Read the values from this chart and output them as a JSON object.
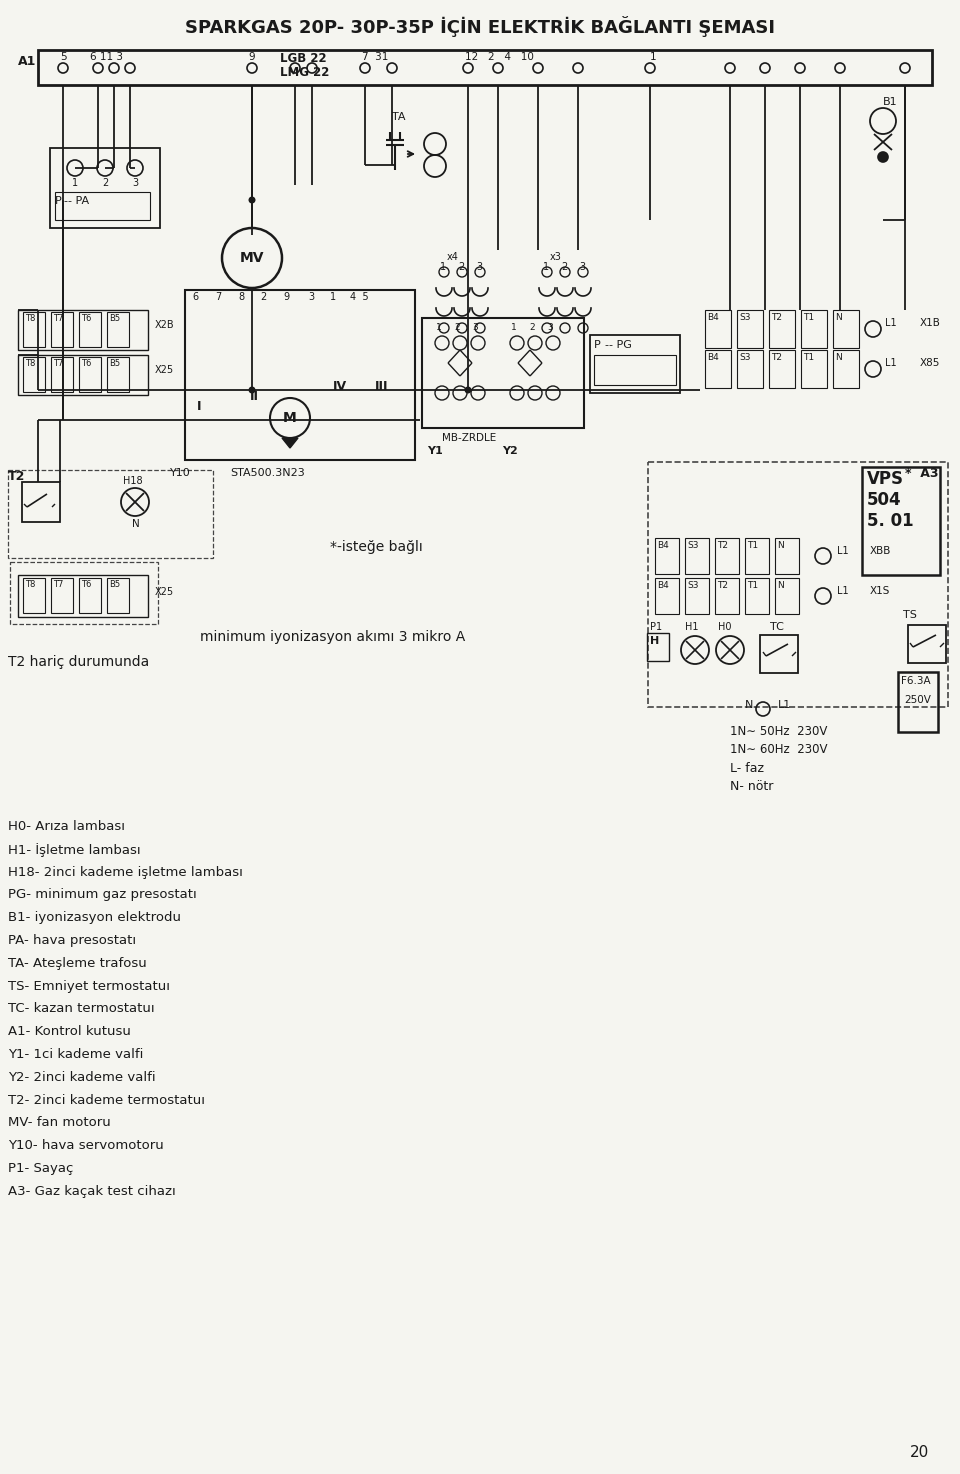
{
  "title": "SPARKGAS 20P- 30P-35P İÇİN ELEKTRİK BAĞLANTI ŞEMASI",
  "bg_color": "#f5f5f0",
  "fg_color": "#1a1a1a",
  "page_number": "20",
  "legend_col1": [
    "H0- Arıza lambası",
    "H1- İşletme lambası",
    "H18- 2inci kademe işletme lambası",
    "PG- minimum gaz presostatı",
    "B1- iyonizasyon elektrodu",
    "PA- hava presostatı",
    "TA- Ateşleme trafosu",
    "TS- Emniyet termostatuı",
    "TC- kazan termostatuı",
    "A1- Kontrol kutusu",
    "Y1- 1ci kademe valfi",
    "Y2- 2inci kademe valfi",
    "T2- 2inci kademe termostatuı",
    "MV- fan motoru",
    "Y10- hava servomotoru",
    "P1- Sayaç",
    "A3- Gaz kaçak test cihazı"
  ],
  "legend_col2_lines": [
    "L- faz",
    "N- nötr"
  ],
  "elec_spec": [
    "1N∼ 50Hz  230V",
    "1N∼ 60Hz  230V"
  ],
  "mid1": "*-isteğe bağlı",
  "mid2": "minimum iyonizasyon akımı 3 mikro A",
  "mid3": "T2 hariç durumunda"
}
